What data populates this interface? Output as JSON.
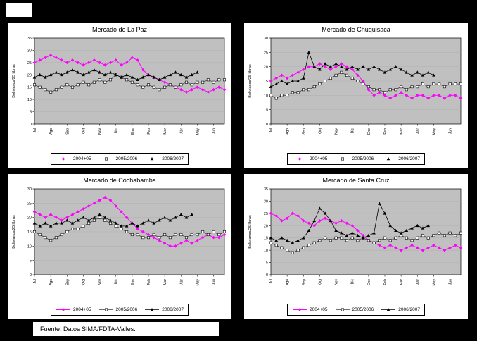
{
  "page": {
    "source_note": "Fuente: Datos SIMA/FDTA-Valles."
  },
  "colors": {
    "background": "#000000",
    "panel_bg": "#FFFFFF",
    "plot_bg": "#C0C0C0",
    "gridline": "#ABABAB",
    "series1": "#FF00FF",
    "series2": "#404040",
    "series3": "#000000"
  },
  "y_axis_title": "Bolivianos/25 libras",
  "months": [
    "Jul",
    "Ago",
    "Sep",
    "Oct",
    "Nov",
    "Dic",
    "Ene",
    "Feb",
    "Mar",
    "Abr",
    "May",
    "Jun"
  ],
  "legend_labels": [
    "2004+05",
    "2005/2006",
    "2006/2007"
  ],
  "chart_data": [
    {
      "type": "line",
      "title": "Mercado de La Paz",
      "ylabel": "Bolivianos/25 libras",
      "ylim": [
        0,
        35
      ],
      "ytick": 5,
      "x_months": [
        "Jul",
        "Ago",
        "Sep",
        "Oct",
        "Nov",
        "Dic",
        "Ene",
        "Feb",
        "Mar",
        "Abr",
        "May",
        "Jun"
      ],
      "series": [
        {
          "name": "2004+05",
          "marker": "diamond",
          "values": [
            25,
            26,
            27,
            28,
            27,
            26,
            25,
            26,
            25,
            24,
            25,
            26,
            25,
            24,
            25,
            26,
            24,
            25,
            27,
            26,
            22,
            20,
            19,
            18,
            17,
            16,
            15,
            14,
            13,
            14,
            15,
            14,
            13,
            14,
            15,
            14
          ]
        },
        {
          "name": "2005/2006",
          "marker": "square",
          "values": [
            16,
            15,
            14,
            13,
            14,
            15,
            16,
            15,
            16,
            17,
            16,
            17,
            18,
            17,
            18,
            20,
            19,
            18,
            17,
            16,
            15,
            16,
            15,
            14,
            15,
            16,
            15,
            16,
            17,
            16,
            17,
            17,
            18,
            17,
            18,
            18
          ]
        },
        {
          "name": "2006/2007",
          "marker": "triangle",
          "values": [
            19,
            20,
            19,
            20,
            21,
            20,
            21,
            22,
            21,
            20,
            21,
            22,
            21,
            20,
            21,
            20,
            19,
            20,
            19,
            18,
            19,
            20,
            19,
            18,
            19,
            20,
            21,
            20,
            19,
            20,
            21,
            null,
            null,
            null,
            null,
            null
          ]
        }
      ]
    },
    {
      "type": "line",
      "title": "Mercado de Chuquisaca",
      "ylabel": "Bolivianos/25 libras",
      "ylim": [
        0,
        30
      ],
      "ytick": 5,
      "x_months": [
        "Jul",
        "Ago",
        "Sep",
        "Oct",
        "Nov",
        "Dic",
        "Ene",
        "Feb",
        "Mar",
        "Abr",
        "May",
        "Jun"
      ],
      "series": [
        {
          "name": "2004+05",
          "marker": "diamond",
          "values": [
            15,
            16,
            17,
            16,
            17,
            18,
            19,
            20,
            20,
            21,
            20,
            19,
            20,
            21,
            20,
            19,
            17,
            15,
            12,
            10,
            11,
            10,
            9,
            10,
            11,
            10,
            9,
            10,
            10,
            9,
            10,
            10,
            9,
            10,
            10,
            9
          ]
        },
        {
          "name": "2005/2006",
          "marker": "square",
          "values": [
            10,
            9,
            10,
            10,
            11,
            11,
            12,
            12,
            13,
            14,
            15,
            16,
            17,
            18,
            17,
            16,
            15,
            14,
            13,
            12,
            12,
            11,
            12,
            12,
            13,
            12,
            13,
            13,
            14,
            13,
            14,
            14,
            13,
            14,
            14,
            14
          ]
        },
        {
          "name": "2006/2007",
          "marker": "triangle",
          "values": [
            13,
            14,
            15,
            14,
            15,
            15,
            16,
            25,
            20,
            19,
            21,
            20,
            21,
            20,
            19,
            20,
            19,
            20,
            19,
            20,
            19,
            18,
            19,
            20,
            19,
            18,
            17,
            18,
            17,
            18,
            17,
            null,
            null,
            null,
            null,
            null
          ]
        }
      ]
    },
    {
      "type": "line",
      "title": "Mercado de Cochabamba",
      "ylabel": "Bolivianos/25 libras",
      "ylim": [
        0,
        30
      ],
      "ytick": 5,
      "x_months": [
        "Jul",
        "Ago",
        "Sep",
        "Oct",
        "Nov",
        "Dic",
        "Ene",
        "Feb",
        "Mar",
        "Abr",
        "May",
        "Jun"
      ],
      "series": [
        {
          "name": "2004+05",
          "marker": "diamond",
          "values": [
            22,
            21,
            20,
            21,
            20,
            19,
            20,
            21,
            22,
            23,
            24,
            25,
            26,
            27,
            26,
            24,
            22,
            20,
            18,
            16,
            15,
            14,
            13,
            12,
            11,
            10,
            10,
            11,
            12,
            11,
            12,
            13,
            14,
            13,
            13,
            14
          ]
        },
        {
          "name": "2005/2006",
          "marker": "square",
          "values": [
            15,
            14,
            13,
            12,
            13,
            14,
            15,
            16,
            16,
            17,
            18,
            19,
            20,
            19,
            18,
            17,
            16,
            15,
            14,
            14,
            13,
            13,
            14,
            13,
            14,
            13,
            14,
            14,
            13,
            14,
            14,
            15,
            14,
            15,
            14,
            15
          ]
        },
        {
          "name": "2006/2007",
          "marker": "triangle",
          "values": [
            18,
            17,
            18,
            17,
            18,
            18,
            19,
            18,
            19,
            20,
            19,
            20,
            21,
            20,
            19,
            18,
            17,
            17,
            18,
            17,
            18,
            19,
            18,
            19,
            20,
            19,
            20,
            21,
            20,
            21,
            null,
            null,
            null,
            null,
            null,
            null
          ]
        }
      ]
    },
    {
      "type": "line",
      "title": "Mercado de Santa Cruz",
      "ylabel": "Bolivianos/25 libras",
      "ylim": [
        0,
        35
      ],
      "ytick": 5,
      "x_months": [
        "Jul",
        "Ago",
        "Sep",
        "Oct",
        "Nov",
        "Dic",
        "Ene",
        "Feb",
        "Mar",
        "Abr",
        "May",
        "Jun"
      ],
      "series": [
        {
          "name": "2004+05",
          "marker": "diamond",
          "values": [
            25,
            24,
            22,
            23,
            25,
            24,
            22,
            21,
            20,
            22,
            23,
            22,
            21,
            22,
            21,
            20,
            18,
            16,
            14,
            13,
            12,
            11,
            12,
            11,
            10,
            11,
            12,
            11,
            10,
            11,
            12,
            11,
            10,
            11,
            12,
            11
          ]
        },
        {
          "name": "2005/2006",
          "marker": "square",
          "values": [
            13,
            12,
            11,
            10,
            9,
            10,
            11,
            12,
            13,
            14,
            15,
            14,
            15,
            15,
            14,
            15,
            14,
            15,
            14,
            13,
            14,
            15,
            14,
            15,
            16,
            15,
            14,
            15,
            16,
            15,
            16,
            17,
            16,
            17,
            16,
            17
          ]
        },
        {
          "name": "2006/2007",
          "marker": "triangle",
          "values": [
            15,
            14,
            15,
            14,
            13,
            14,
            15,
            18,
            22,
            27,
            25,
            22,
            18,
            17,
            16,
            17,
            16,
            15,
            16,
            17,
            29,
            25,
            20,
            18,
            17,
            18,
            19,
            20,
            19,
            20,
            null,
            null,
            null,
            null,
            null,
            null
          ]
        }
      ]
    }
  ]
}
